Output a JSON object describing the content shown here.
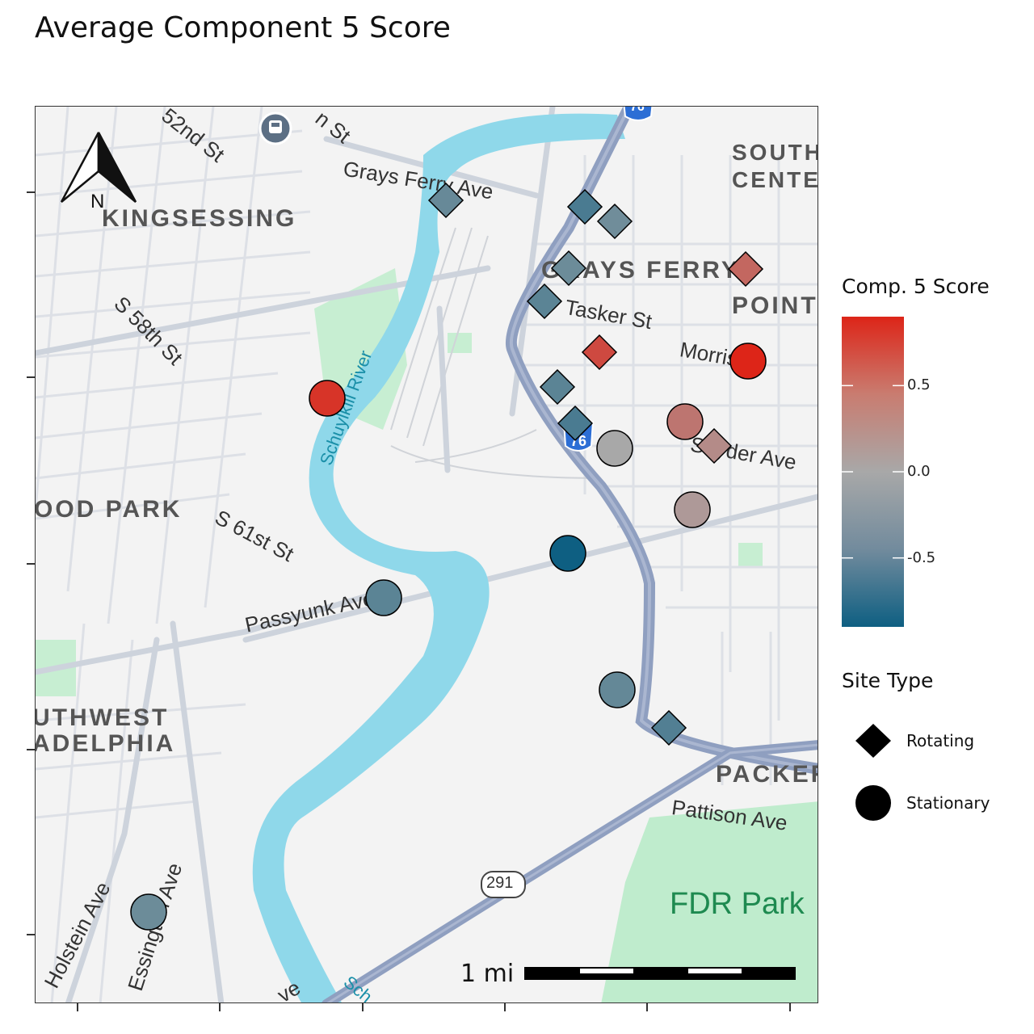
{
  "title": "Average Component 5 Score",
  "map": {
    "neighborhood_labels": [
      "KINGSESSING",
      "SOUTH CENTER",
      "GRAYS FERRY",
      "POINT",
      "OOD PARK",
      "UTHWEST",
      "ADELPHIA",
      "PACKER"
    ],
    "street_labels": [
      "52nd St",
      "n St",
      "Grays Ferry Ave",
      "S 58th St",
      "Tasker St",
      "Morris St",
      "Snyder Ave",
      "S 61st St",
      "Passyunk Ave",
      "Pattison Ave",
      "Holstein Ave",
      "Essington Ave",
      "Sch",
      "ve"
    ],
    "water_labels": [
      "Schuylkill River"
    ],
    "park_labels": [
      "FDR Park"
    ],
    "shields": [
      "76",
      "76",
      "291"
    ],
    "north_arrow_label": "N",
    "scale_bar_label": "1 mi",
    "icons": [
      "north-arrow-icon",
      "train-station-icon"
    ]
  },
  "legend": {
    "color_title": "Comp. 5 Score",
    "ticks": [
      "0.5",
      "0.0",
      "-0.5"
    ],
    "tick_values": [
      0.5,
      0.0,
      -0.5
    ],
    "range": [
      -0.9,
      0.9
    ],
    "colors": {
      "low": "#0e5f82",
      "mid": "#a8a8a8",
      "high": "#dd2518"
    },
    "shape_title": "Site Type",
    "shapes": [
      {
        "label": "Rotating",
        "shape": "diamond"
      },
      {
        "label": "Stationary",
        "shape": "circle"
      }
    ]
  },
  "sites": [
    {
      "type": "Rotating",
      "score": -0.38
    },
    {
      "type": "Rotating",
      "score": -0.55
    },
    {
      "type": "Rotating",
      "score": -0.33
    },
    {
      "type": "Rotating",
      "score": -0.35
    },
    {
      "type": "Rotating",
      "score": 0.45
    },
    {
      "type": "Rotating",
      "score": -0.45
    },
    {
      "type": "Rotating",
      "score": 0.65
    },
    {
      "type": "Rotating",
      "score": -0.45
    },
    {
      "type": "Rotating",
      "score": -0.55
    },
    {
      "type": "Rotating",
      "score": 0.2
    },
    {
      "type": "Rotating",
      "score": -0.5
    },
    {
      "type": "Stationary",
      "score": 0.9
    },
    {
      "type": "Stationary",
      "score": 0.8
    },
    {
      "type": "Stationary",
      "score": 0.35
    },
    {
      "type": "Stationary",
      "score": 0.0
    },
    {
      "type": "Stationary",
      "score": 0.1
    },
    {
      "type": "Stationary",
      "score": -0.9
    },
    {
      "type": "Stationary",
      "score": -0.45
    },
    {
      "type": "Stationary",
      "score": -0.4
    },
    {
      "type": "Stationary",
      "score": -0.35
    }
  ]
}
